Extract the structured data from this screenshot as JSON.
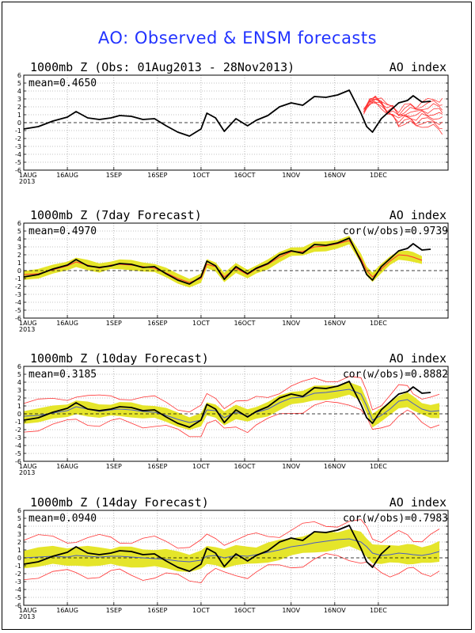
{
  "page": {
    "title": "AO: Observed & ENSM forecasts"
  },
  "colors": {
    "title": "#2233ff",
    "observed": "#000000",
    "members": "#ff3333",
    "spread": "#e5e52a",
    "mean_line": "#4a5cc4"
  },
  "axis": {
    "yticks": [
      "6",
      "5",
      "4",
      "3",
      "2",
      "1",
      "0",
      "-1",
      "-2",
      "-3",
      "-4",
      "-5",
      "-6"
    ],
    "xticks": [
      "1AUG",
      "16AUG",
      "1SEP",
      "16SEP",
      "1OCT",
      "16OCT",
      "1NOV",
      "16NOV",
      "1DEC"
    ],
    "xyear": "2013"
  },
  "chart_data": [
    {
      "type": "line",
      "title": "1000mb Z (Obs: 01Aug2013 - 28Nov2013)",
      "right_title": "AO index",
      "stat": "mean=0.4650",
      "stat_right": "",
      "ylim": [
        -6,
        6
      ],
      "x_dates_start": "01AUG2013",
      "series": [
        {
          "name": "",
          "role": "observed",
          "x": [
            0,
            5,
            10,
            15,
            18,
            22,
            26,
            30,
            33,
            37,
            41,
            45,
            49,
            53,
            57,
            61,
            63,
            66,
            69,
            73,
            77,
            80,
            84,
            88,
            92,
            96,
            100,
            104,
            108,
            112,
            116,
            118,
            120,
            123,
            126,
            129,
            132,
            134,
            137,
            140
          ],
          "y": [
            -0.8,
            -0.5,
            0.2,
            0.7,
            1.4,
            0.6,
            0.4,
            0.6,
            0.9,
            0.8,
            0.4,
            0.5,
            -0.4,
            -1.2,
            -1.7,
            -0.8,
            1.2,
            0.6,
            -1.1,
            0.5,
            -0.4,
            0.3,
            0.9,
            2.0,
            2.5,
            2.2,
            3.3,
            3.2,
            3.5,
            4.1,
            1.2,
            -0.5,
            -1.2,
            0.5,
            1.5,
            2.5,
            2.8,
            3.4,
            2.6,
            2.7
          ]
        },
        {
          "name": "",
          "role": "members",
          "x": [
            117,
            119,
            121,
            123,
            125,
            127,
            129,
            131,
            133,
            135,
            137,
            139,
            141,
            143,
            144
          ],
          "y": [
            1.4,
            2.6,
            3.0,
            2.5,
            1.5,
            1.5,
            0.6,
            1.0,
            1.1,
            0.8,
            1.2,
            1.1,
            1.2,
            1.0,
            0.9
          ]
        }
      ]
    },
    {
      "type": "area",
      "title": "1000mb Z (7day Forecast)",
      "right_title": "AO index",
      "stat": "mean=0.4970",
      "stat_right": "cor(w/obs)=0.9739",
      "ylim": [
        -6,
        6
      ],
      "x_dates_start": "01AUG2013",
      "band_halfwidth": 0.55,
      "series": [
        {
          "name": "",
          "role": "observed",
          "x": [
            0,
            5,
            10,
            15,
            18,
            22,
            26,
            30,
            33,
            37,
            41,
            45,
            49,
            53,
            57,
            61,
            63,
            66,
            69,
            73,
            77,
            80,
            84,
            88,
            92,
            96,
            100,
            104,
            108,
            112,
            116,
            118,
            120,
            123,
            126,
            129,
            132,
            134,
            137,
            140
          ],
          "y": [
            -0.8,
            -0.5,
            0.2,
            0.7,
            1.4,
            0.6,
            0.4,
            0.6,
            0.9,
            0.8,
            0.4,
            0.5,
            -0.4,
            -1.2,
            -1.7,
            -0.8,
            1.2,
            0.6,
            -1.1,
            0.5,
            -0.4,
            0.3,
            0.9,
            2.0,
            2.5,
            2.2,
            3.3,
            3.2,
            3.5,
            4.1,
            1.2,
            -0.5,
            -1.2,
            0.5,
            1.5,
            2.5,
            2.8,
            3.4,
            2.6,
            2.7
          ]
        },
        {
          "name": "",
          "role": "forecast_mean",
          "x": [
            0,
            5,
            10,
            15,
            18,
            22,
            26,
            30,
            33,
            37,
            41,
            45,
            49,
            53,
            57,
            61,
            63,
            66,
            69,
            73,
            77,
            80,
            84,
            88,
            92,
            96,
            100,
            104,
            108,
            112,
            116,
            118,
            120,
            123,
            126,
            129,
            132,
            134,
            137
          ],
          "y": [
            -0.5,
            -0.4,
            0.1,
            0.6,
            1.1,
            0.7,
            0.3,
            0.7,
            0.8,
            0.7,
            0.5,
            0.3,
            -0.3,
            -1.0,
            -1.5,
            -1.0,
            0.8,
            0.5,
            -0.8,
            0.3,
            -0.5,
            0.2,
            0.8,
            1.7,
            2.4,
            2.4,
            3.0,
            3.1,
            3.4,
            3.8,
            1.5,
            0.0,
            -0.8,
            0.2,
            1.2,
            2.0,
            1.9,
            1.7,
            1.3
          ]
        }
      ]
    },
    {
      "type": "area",
      "title": "1000mb Z (10day Forecast)",
      "right_title": "AO index",
      "stat": "mean=0.3185",
      "stat_right": "cor(w/obs)=0.8882",
      "ylim": [
        -6,
        6
      ],
      "x_dates_start": "01AUG2013",
      "band_halfwidth": 0.8,
      "envelope_halfwidth": 1.9,
      "series": [
        {
          "name": "",
          "role": "observed",
          "x": [
            0,
            5,
            10,
            15,
            18,
            22,
            26,
            30,
            33,
            37,
            41,
            45,
            49,
            53,
            57,
            61,
            63,
            66,
            69,
            73,
            77,
            80,
            84,
            88,
            92,
            96,
            100,
            104,
            108,
            112,
            116,
            118,
            120,
            123,
            126,
            129,
            132,
            134,
            137,
            140
          ],
          "y": [
            -0.8,
            -0.5,
            0.2,
            0.7,
            1.4,
            0.6,
            0.4,
            0.6,
            0.9,
            0.8,
            0.4,
            0.5,
            -0.4,
            -1.2,
            -1.7,
            -0.8,
            1.2,
            0.6,
            -1.1,
            0.5,
            -0.4,
            0.3,
            0.9,
            2.0,
            2.5,
            2.2,
            3.3,
            3.2,
            3.5,
            4.1,
            1.2,
            -0.5,
            -1.2,
            0.5,
            1.5,
            2.5,
            2.8,
            3.4,
            2.6,
            2.7
          ]
        },
        {
          "name": "",
          "role": "forecast_mean",
          "x": [
            0,
            5,
            10,
            15,
            18,
            22,
            26,
            30,
            33,
            37,
            41,
            45,
            49,
            53,
            57,
            61,
            63,
            66,
            69,
            73,
            77,
            80,
            84,
            88,
            92,
            96,
            100,
            104,
            108,
            112,
            116,
            118,
            120,
            123,
            126,
            129,
            132,
            134,
            137,
            140,
            143
          ],
          "y": [
            -0.3,
            -0.2,
            0.1,
            0.4,
            0.9,
            0.6,
            0.3,
            0.5,
            0.6,
            0.5,
            0.3,
            0.2,
            -0.2,
            -0.7,
            -1.1,
            -0.8,
            0.5,
            0.4,
            -0.5,
            0.2,
            -0.3,
            0.2,
            0.6,
            1.4,
            2.0,
            2.1,
            2.6,
            2.7,
            2.9,
            3.1,
            2.5,
            1.0,
            -0.8,
            -0.2,
            0.6,
            1.6,
            1.8,
            1.3,
            0.6,
            0.3,
            0.4
          ]
        }
      ]
    },
    {
      "type": "area",
      "title": "1000mb Z (14day Forecast)",
      "right_title": "AO index",
      "stat": "mean=0.0940",
      "stat_right": "cor(w/obs)=0.7983",
      "ylim": [
        -6,
        6
      ],
      "x_dates_start": "01AUG2013",
      "band_halfwidth": 1.1,
      "envelope_halfwidth": 2.6,
      "series": [
        {
          "name": "",
          "role": "observed",
          "x": [
            0,
            5,
            10,
            15,
            18,
            22,
            26,
            30,
            33,
            37,
            41,
            45,
            49,
            53,
            57,
            61,
            63,
            66,
            69,
            73,
            77,
            80,
            84,
            88,
            92,
            96,
            100,
            104,
            108,
            112,
            116,
            118,
            120,
            123,
            126
          ],
          "y": [
            -0.8,
            -0.5,
            0.2,
            0.7,
            1.4,
            0.6,
            0.4,
            0.6,
            0.9,
            0.8,
            0.4,
            0.5,
            -0.4,
            -1.2,
            -1.7,
            -0.8,
            1.2,
            0.6,
            -1.1,
            0.5,
            -0.4,
            0.3,
            0.9,
            2.0,
            2.5,
            2.2,
            3.3,
            3.2,
            3.5,
            4.1,
            1.2,
            -0.5,
            -1.2,
            0.5,
            1.5
          ]
        },
        {
          "name": "",
          "role": "forecast_mean",
          "x": [
            0,
            5,
            10,
            15,
            18,
            22,
            26,
            30,
            33,
            37,
            41,
            45,
            49,
            53,
            57,
            61,
            63,
            66,
            69,
            73,
            77,
            80,
            84,
            88,
            92,
            96,
            100,
            104,
            108,
            112,
            116,
            118,
            120,
            123,
            126,
            129,
            132,
            134,
            137,
            140,
            143
          ],
          "y": [
            0.0,
            0.1,
            0.2,
            0.1,
            0.3,
            0.2,
            0.1,
            0.2,
            0.2,
            0.1,
            0.0,
            -0.1,
            -0.2,
            -0.4,
            -0.5,
            -0.3,
            0.2,
            0.3,
            0.0,
            0.3,
            0.2,
            0.4,
            0.7,
            1.0,
            1.4,
            1.6,
            1.9,
            2.1,
            2.3,
            2.4,
            2.0,
            1.4,
            0.6,
            0.3,
            0.4,
            0.6,
            0.5,
            0.4,
            0.3,
            0.5,
            0.8
          ]
        }
      ]
    }
  ]
}
